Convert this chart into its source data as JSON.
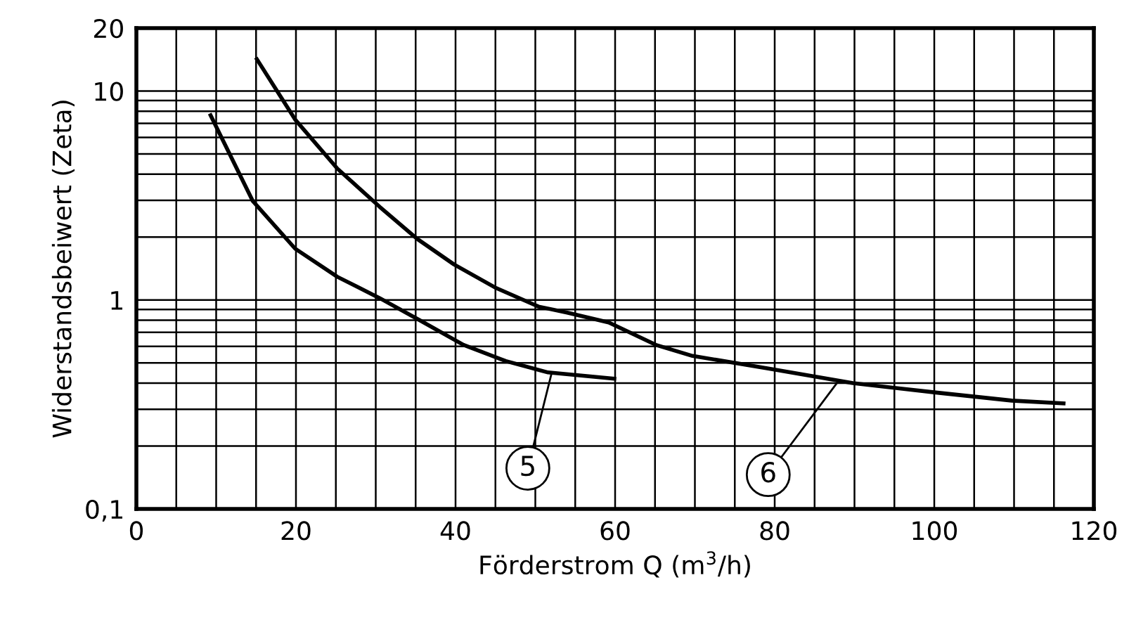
{
  "chart_data": {
    "type": "line",
    "xlabel": "Förderstrom Q (m$^{3}$/h)",
    "ylabel": "Widerstandsbeiwert (Zeta)",
    "log": "y",
    "grid": true,
    "legend": false,
    "marker": "none",
    "line_style": "solid",
    "xlim": [
      0,
      120
    ],
    "ylim": [
      0.1,
      20
    ],
    "xticks": [
      0,
      {
        "value": 5,
        "label": null
      },
      20,
      {
        "value": 10,
        "label": null
      },
      {
        "value": 15,
        "label": null
      },
      {
        "value": 25,
        "label": null
      },
      {
        "value": 30,
        "label": null
      },
      {
        "value": 35,
        "label": null
      },
      40,
      {
        "value": 45,
        "label": null
      },
      {
        "value": 50,
        "label": null
      },
      {
        "value": 55,
        "label": null
      },
      60,
      {
        "value": 65,
        "label": null
      },
      {
        "value": 70,
        "label": null
      },
      {
        "value": 75,
        "label": null
      },
      80,
      {
        "value": 85,
        "label": null
      },
      {
        "value": 90,
        "label": null
      },
      {
        "value": 95,
        "label": null
      },
      100,
      {
        "value": 105,
        "label": null
      },
      {
        "value": 110,
        "label": null
      },
      {
        "value": 115,
        "label": null
      },
      120
    ],
    "yticks": [
      {
        "value": 0.1,
        "label": "0,1"
      },
      {
        "value": 0.2,
        "label": null
      },
      {
        "value": 0.3,
        "label": null
      },
      {
        "value": 0.4,
        "label": null
      },
      {
        "value": 0.5,
        "label": null
      },
      {
        "value": 0.6,
        "label": null
      },
      {
        "value": 0.7,
        "label": null
      },
      {
        "value": 0.8,
        "label": null
      },
      {
        "value": 0.9,
        "label": null
      },
      1,
      {
        "value": 2,
        "label": null
      },
      {
        "value": 3,
        "label": null
      },
      {
        "value": 4,
        "label": null
      },
      {
        "value": 5,
        "label": null
      },
      {
        "value": 6,
        "label": null
      },
      {
        "value": 7,
        "label": null
      },
      {
        "value": 8,
        "label": null
      },
      {
        "value": 9,
        "label": null
      },
      10,
      20
    ],
    "series": [
      {
        "color": "#000000",
        "x": [
          9.3,
          14.6,
          19.9,
          25.2,
          30.5,
          35.5,
          41,
          46.3,
          51.6,
          59.9
        ],
        "values": [
          7.65,
          2.97,
          1.76,
          1.29,
          1.02,
          0.8,
          0.61,
          0.51,
          0.45,
          0.42
        ]
      },
      {
        "color": "#000000",
        "x": [
          15.1,
          19.9,
          25.2,
          30.5,
          35.2,
          39.8,
          45.1,
          50.4,
          54,
          59.2,
          65.1,
          69.7,
          79.2,
          89.8,
          100.4,
          109.7,
          116.2
        ],
        "values": [
          14.2,
          7.3,
          4.25,
          2.79,
          1.96,
          1.48,
          1.14,
          0.93,
          0.87,
          0.78,
          0.61,
          0.54,
          0.47,
          0.4,
          0.36,
          0.33,
          0.32
        ]
      }
    ],
    "annotations": [
      {
        "text": "5",
        "x": 52,
        "y": 0.44
      },
      {
        "text": "6",
        "x": 88,
        "y": 0.41
      }
    ]
  }
}
